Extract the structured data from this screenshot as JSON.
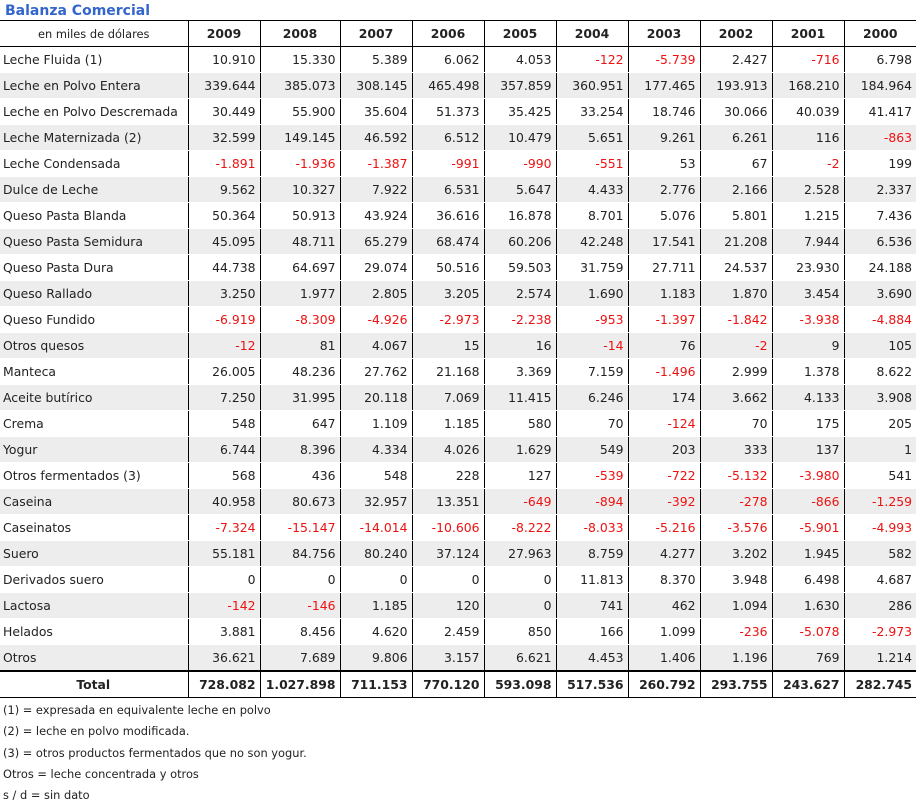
{
  "title": "Balanza Comercial",
  "units_label": "en miles de dólares",
  "years": [
    "2009",
    "2008",
    "2007",
    "2006",
    "2005",
    "2004",
    "2003",
    "2002",
    "2001",
    "2000"
  ],
  "rows": [
    {
      "label": "Leche Fluida (1)",
      "values": [
        "10.910",
        "15.330",
        "5.389",
        "6.062",
        "4.053",
        "-122",
        "-5.739",
        "2.427",
        "-716",
        "6.798"
      ]
    },
    {
      "label": "Leche en Polvo Entera",
      "values": [
        "339.644",
        "385.073",
        "308.145",
        "465.498",
        "357.859",
        "360.951",
        "177.465",
        "193.913",
        "168.210",
        "184.964"
      ]
    },
    {
      "label": "Leche en Polvo Descremada",
      "values": [
        "30.449",
        "55.900",
        "35.604",
        "51.373",
        "35.425",
        "33.254",
        "18.746",
        "30.066",
        "40.039",
        "41.417"
      ]
    },
    {
      "label": "Leche Maternizada (2)",
      "values": [
        "32.599",
        "149.145",
        "46.592",
        "6.512",
        "10.479",
        "5.651",
        "9.261",
        "6.261",
        "116",
        "-863"
      ]
    },
    {
      "label": "Leche Condensada",
      "values": [
        "-1.891",
        "-1.936",
        "-1.387",
        "-991",
        "-990",
        "-551",
        "53",
        "67",
        "-2",
        "199"
      ]
    },
    {
      "label": "Dulce de Leche",
      "values": [
        "9.562",
        "10.327",
        "7.922",
        "6.531",
        "5.647",
        "4.433",
        "2.776",
        "2.166",
        "2.528",
        "2.337"
      ]
    },
    {
      "label": "Queso Pasta Blanda",
      "values": [
        "50.364",
        "50.913",
        "43.924",
        "36.616",
        "16.878",
        "8.701",
        "5.076",
        "5.801",
        "1.215",
        "7.436"
      ]
    },
    {
      "label": "Queso Pasta Semidura",
      "values": [
        "45.095",
        "48.711",
        "65.279",
        "68.474",
        "60.206",
        "42.248",
        "17.541",
        "21.208",
        "7.944",
        "6.536"
      ]
    },
    {
      "label": "Queso Pasta Dura",
      "values": [
        "44.738",
        "64.697",
        "29.074",
        "50.516",
        "59.503",
        "31.759",
        "27.711",
        "24.537",
        "23.930",
        "24.188"
      ]
    },
    {
      "label": "Queso Rallado",
      "values": [
        "3.250",
        "1.977",
        "2.805",
        "3.205",
        "2.574",
        "1.690",
        "1.183",
        "1.870",
        "3.454",
        "3.690"
      ]
    },
    {
      "label": "Queso Fundido",
      "values": [
        "-6.919",
        "-8.309",
        "-4.926",
        "-2.973",
        "-2.238",
        "-953",
        "-1.397",
        "-1.842",
        "-3.938",
        "-4.884"
      ]
    },
    {
      "label": "Otros quesos",
      "values": [
        "-12",
        "81",
        "4.067",
        "15",
        "16",
        "-14",
        "76",
        "-2",
        "9",
        "105"
      ]
    },
    {
      "label": "Manteca",
      "values": [
        "26.005",
        "48.236",
        "27.762",
        "21.168",
        "3.369",
        "7.159",
        "-1.496",
        "2.999",
        "1.378",
        "8.622"
      ]
    },
    {
      "label": "Aceite butírico",
      "values": [
        "7.250",
        "31.995",
        "20.118",
        "7.069",
        "11.415",
        "6.246",
        "174",
        "3.662",
        "4.133",
        "3.908"
      ]
    },
    {
      "label": "Crema",
      "values": [
        "548",
        "647",
        "1.109",
        "1.185",
        "580",
        "70",
        "-124",
        "70",
        "175",
        "205"
      ]
    },
    {
      "label": "Yogur",
      "values": [
        "6.744",
        "8.396",
        "4.334",
        "4.026",
        "1.629",
        "549",
        "203",
        "333",
        "137",
        "1"
      ]
    },
    {
      "label": "Otros fermentados (3)",
      "values": [
        "568",
        "436",
        "548",
        "228",
        "127",
        "-539",
        "-722",
        "-5.132",
        "-3.980",
        "541"
      ]
    },
    {
      "label": "Caseina",
      "values": [
        "40.958",
        "80.673",
        "32.957",
        "13.351",
        "-649",
        "-894",
        "-392",
        "-278",
        "-866",
        "-1.259"
      ]
    },
    {
      "label": "Caseinatos",
      "values": [
        "-7.324",
        "-15.147",
        "-14.014",
        "-10.606",
        "-8.222",
        "-8.033",
        "-5.216",
        "-3.576",
        "-5.901",
        "-4.993"
      ]
    },
    {
      "label": "Suero",
      "values": [
        "55.181",
        "84.756",
        "80.240",
        "37.124",
        "27.963",
        "8.759",
        "4.277",
        "3.202",
        "1.945",
        "582"
      ]
    },
    {
      "label": "Derivados suero",
      "values": [
        "0",
        "0",
        "0",
        "0",
        "0",
        "11.813",
        "8.370",
        "3.948",
        "6.498",
        "4.687"
      ]
    },
    {
      "label": "Lactosa",
      "values": [
        "-142",
        "-146",
        "1.185",
        "120",
        "0",
        "741",
        "462",
        "1.094",
        "1.630",
        "286"
      ]
    },
    {
      "label": "Helados",
      "values": [
        "3.881",
        "8.456",
        "4.620",
        "2.459",
        "850",
        "166",
        "1.099",
        "-236",
        "-5.078",
        "-2.973"
      ]
    },
    {
      "label": "Otros",
      "values": [
        "36.621",
        "7.689",
        "9.806",
        "3.157",
        "6.621",
        "4.453",
        "1.406",
        "1.196",
        "769",
        "1.214"
      ]
    }
  ],
  "total": {
    "label": "Total",
    "values": [
      "728.082",
      "1.027.898",
      "711.153",
      "770.120",
      "593.098",
      "517.536",
      "260.792",
      "293.755",
      "243.627",
      "282.745"
    ]
  },
  "notes": [
    "(1) = expresada en equivalente leche en polvo",
    "(2) = leche en polvo modificada.",
    "(3) = otros productos fermentados que no son yogur.",
    "Otros = leche concentrada y otros",
    "s / d = sin dato"
  ],
  "colors": {
    "title": "#3366cc",
    "negative": "#ee1111",
    "stripe": "#ededed"
  }
}
